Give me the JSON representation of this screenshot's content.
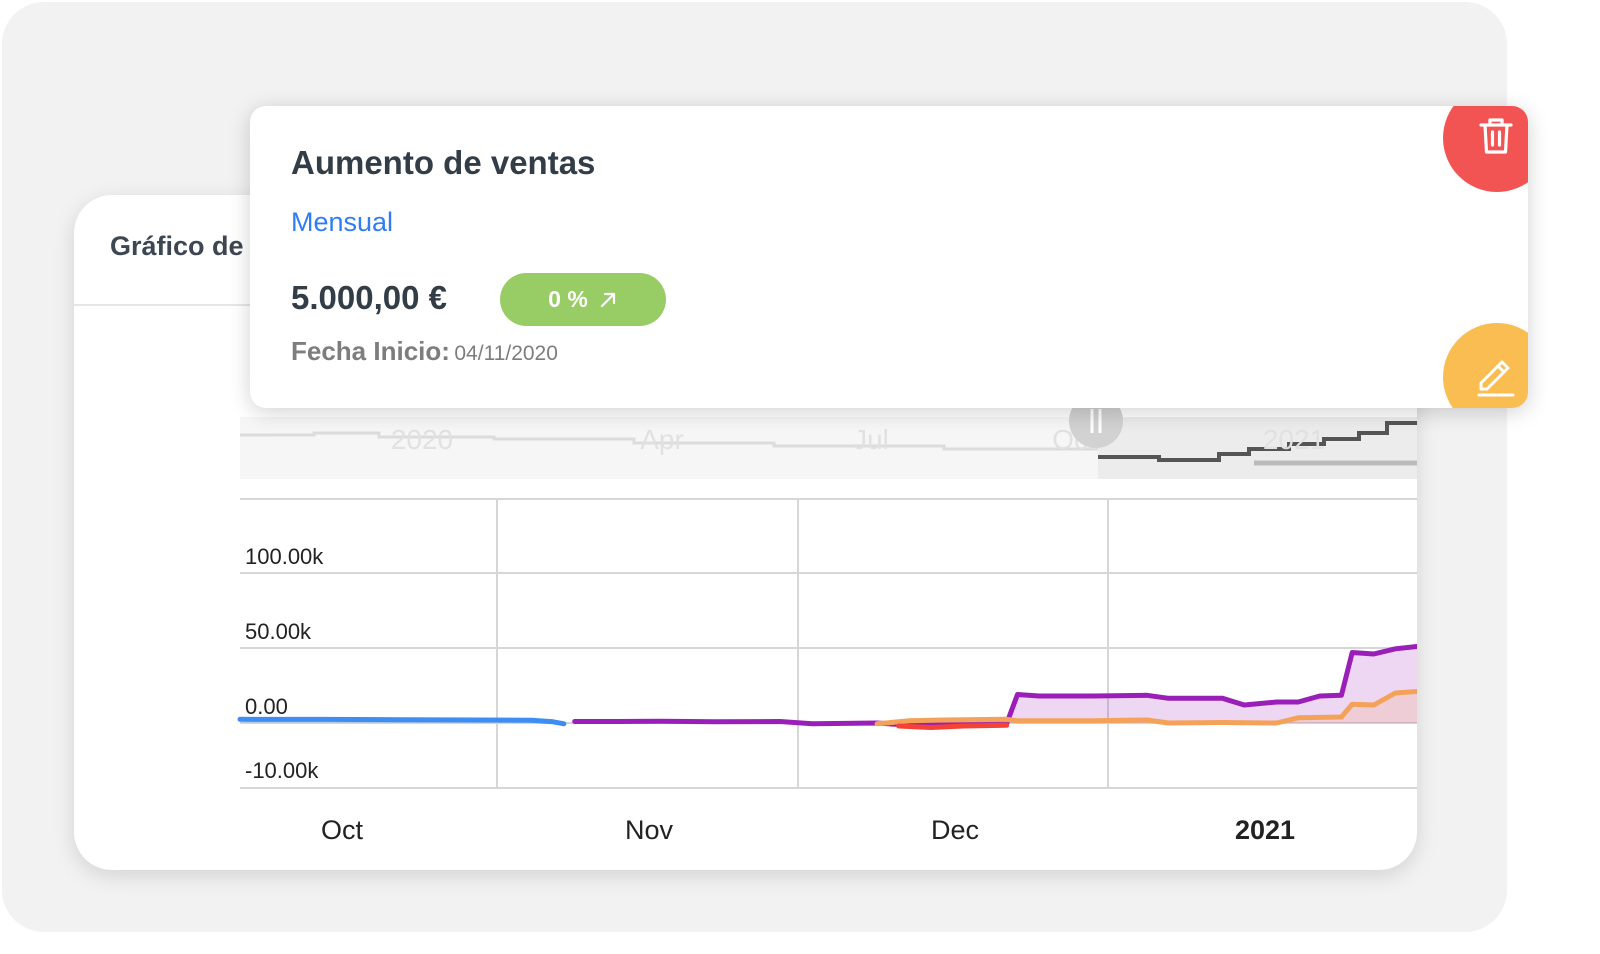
{
  "chart_card": {
    "title": "Gráfico de"
  },
  "goal_card": {
    "title": "Aumento de ventas",
    "period": "Mensual",
    "amount": "5.000,00 €",
    "badge": "0 %",
    "start_label": "Fecha Inicio:",
    "start_value": "04/11/2020",
    "delete_icon": "trash-icon",
    "edit_icon": "pencil-icon"
  },
  "colors": {
    "blue": "#3d8df2",
    "purple": "#9a1fb8",
    "orange": "#f4a259",
    "red": "#f44336",
    "badge_green": "#98cc64",
    "delete_red": "#f25353",
    "edit_yellow": "#f9bd52",
    "link_blue": "#2f7cf6"
  },
  "chart_data": {
    "type": "line",
    "title": "",
    "navigator_labels": [
      "2020",
      "Apr",
      "Jul",
      "Oct",
      "2021"
    ],
    "x_labels": [
      "Oct",
      "Nov",
      "Dec",
      "2021"
    ],
    "y_ticks": [
      "100.00k",
      "50.00k",
      "0.00",
      "-10.00k"
    ],
    "y_tick_values": [
      100000,
      50000,
      0,
      -10000
    ],
    "ylim": [
      -10000,
      100000
    ],
    "xlim": [
      "2020-09-27",
      "2021-01-14"
    ],
    "series": [
      {
        "color": "#3d8df2",
        "area": true,
        "points": [
          [
            "2020-09-27",
            2500
          ],
          [
            "2020-10-05",
            2400
          ],
          [
            "2020-10-12",
            2200
          ],
          [
            "2020-10-19",
            2000
          ],
          [
            "2020-10-24",
            1800
          ],
          [
            "2020-10-26",
            800
          ],
          [
            "2020-10-27",
            -500
          ]
        ]
      },
      {
        "color": "#9a1fb8",
        "area": true,
        "points": [
          [
            "2020-10-28",
            1000
          ],
          [
            "2020-11-01",
            1000
          ],
          [
            "2020-11-05",
            1200
          ],
          [
            "2020-11-10",
            800
          ],
          [
            "2020-11-16",
            1000
          ],
          [
            "2020-11-19",
            -500
          ],
          [
            "2020-11-25",
            0
          ],
          [
            "2020-11-27",
            -1000
          ],
          [
            "2020-12-07",
            -300
          ],
          [
            "2020-12-08",
            19000
          ],
          [
            "2020-12-10",
            18000
          ],
          [
            "2020-12-15",
            18000
          ],
          [
            "2020-12-20",
            18500
          ],
          [
            "2020-12-22",
            16500
          ],
          [
            "2020-12-27",
            16500
          ],
          [
            "2020-12-29",
            12000
          ],
          [
            "2021-01-01",
            14000
          ],
          [
            "2021-01-03",
            14000
          ],
          [
            "2021-01-05",
            18000
          ],
          [
            "2021-01-07",
            18500
          ],
          [
            "2021-01-08",
            47000
          ],
          [
            "2021-01-10",
            46000
          ],
          [
            "2021-01-12",
            49500
          ],
          [
            "2021-01-14",
            51000
          ]
        ]
      },
      {
        "color": "#f4a259",
        "area": true,
        "points": [
          [
            "2020-11-25",
            -500
          ],
          [
            "2020-11-28",
            1500
          ],
          [
            "2020-12-01",
            2000
          ],
          [
            "2020-12-07",
            2500
          ],
          [
            "2020-12-08",
            1500
          ],
          [
            "2020-12-15",
            1500
          ],
          [
            "2020-12-20",
            2000
          ],
          [
            "2020-12-22",
            0
          ],
          [
            "2020-12-27",
            300
          ],
          [
            "2021-01-01",
            0
          ],
          [
            "2021-01-03",
            3500
          ],
          [
            "2021-01-07",
            4000
          ],
          [
            "2021-01-08",
            12500
          ],
          [
            "2021-01-10",
            12000
          ],
          [
            "2021-01-12",
            20000
          ],
          [
            "2021-01-14",
            21000
          ]
        ]
      },
      {
        "color": "#f44336",
        "area": false,
        "points": [
          [
            "2020-11-27",
            -2000
          ],
          [
            "2020-11-30",
            -3000
          ],
          [
            "2020-12-03",
            -2000
          ],
          [
            "2020-12-07",
            -1500
          ]
        ]
      }
    ]
  }
}
